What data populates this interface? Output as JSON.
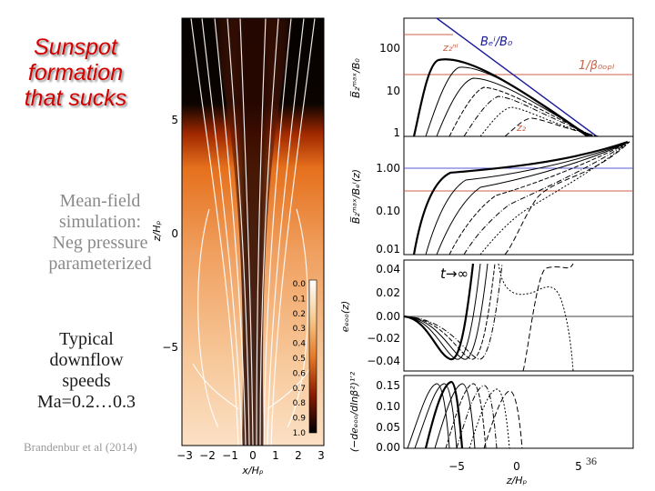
{
  "slide": {
    "title_lines": [
      "Sunspot",
      "formation",
      "that sucks"
    ],
    "meanfield_lines": [
      "Mean-field",
      "simulation:",
      "Neg pressure",
      "parameterized"
    ],
    "downflow_lines": [
      "Typical",
      "downflow",
      "speeds",
      "Ma=0.2…0.3"
    ],
    "citation": "Brandenbur et al (2014)",
    "page_number": "36"
  },
  "figure_left": {
    "xlabel": "x/Hₚ",
    "ylabel": "z/Hₚ",
    "xticks": [
      "−3",
      "−2",
      "−1",
      "0",
      "1",
      "2",
      "3"
    ],
    "yticks": [
      "5",
      "0",
      "−5"
    ],
    "colorbar_ticks": [
      "0.0",
      "0.1",
      "0.2",
      "0.3",
      "0.4",
      "0.5",
      "0.6",
      "0.7",
      "0.8",
      "0.9",
      "1.0"
    ]
  },
  "panels": {
    "p1": {
      "ylabel": "B̅₂ᵐᵃˣ/B₀",
      "yticks": [
        "100",
        "10",
        "1"
      ],
      "labels": {
        "zb_top": "z₂ⁿˡ",
        "beq": "Bₑⁱ/B₀",
        "beta": "1/β₀ₒₚₗ",
        "zb_bot": "z₂"
      }
    },
    "p2": {
      "ylabel": "B̅₂ᵐᵃˣ/Bₑⁱ(z)",
      "yticks": [
        "1.00",
        "0.10",
        "0.01"
      ]
    },
    "p3": {
      "ylabel": "ℯₑₒₒ(z)",
      "yticks": [
        "0.04",
        "0.02",
        "0.00",
        "−0.02",
        "−0.04"
      ],
      "annotation": "t→∞"
    },
    "p4": {
      "ylabel": "(−dℯₑₒₒ/dlnβ²)¹′²",
      "yticks": [
        "0.15",
        "0.10",
        "0.05",
        "0.00"
      ],
      "xticks": [
        "−5",
        "0",
        "5"
      ],
      "xlabel": "z/Hₚ"
    }
  }
}
